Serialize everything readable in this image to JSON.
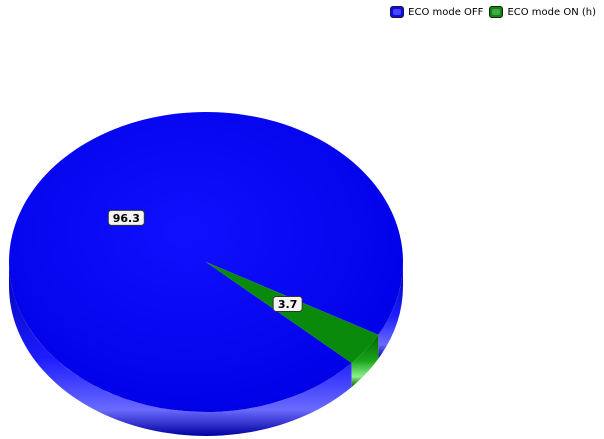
{
  "chart_data": {
    "type": "pie",
    "title": "",
    "series": [
      {
        "name": "ECO mode OFF",
        "value": 96.3,
        "color": "#0a0aff",
        "label": "96.3"
      },
      {
        "name": "ECO mode ON (h)",
        "value": 3.7,
        "color": "#0a8a0a",
        "label": "3.7"
      }
    ],
    "legend_position": "top-right"
  }
}
